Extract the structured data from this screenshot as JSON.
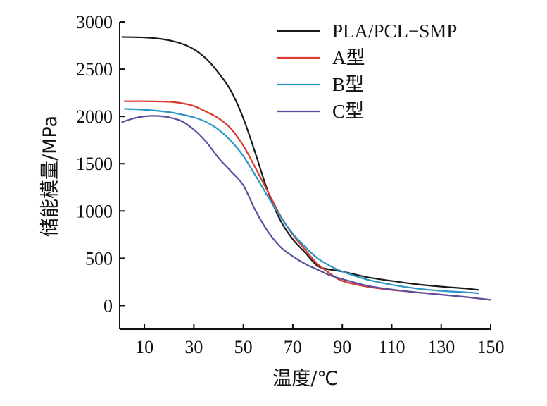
{
  "chart_data": {
    "type": "line",
    "xlabel": "温度/℃",
    "ylabel": "储能模量/MPa",
    "xlim": [
      0,
      150
    ],
    "ylim": [
      -250,
      3000
    ],
    "xticks": [
      10,
      30,
      50,
      70,
      90,
      110,
      130,
      150
    ],
    "yticks": [
      0,
      500,
      1000,
      1500,
      2000,
      2500,
      3000
    ],
    "grid": false,
    "legend": "top-right",
    "series": [
      {
        "name": "PLA/PCL−SMP",
        "color": "#1a1a1a",
        "x": [
          1,
          10,
          15,
          20,
          25,
          30,
          35,
          40,
          45,
          50,
          55,
          60,
          65,
          70,
          75,
          80,
          85,
          90,
          100,
          110,
          120,
          130,
          140,
          145
        ],
        "y": [
          2840,
          2835,
          2825,
          2805,
          2770,
          2710,
          2610,
          2460,
          2270,
          1980,
          1600,
          1200,
          900,
          700,
          560,
          420,
          380,
          360,
          300,
          260,
          225,
          200,
          180,
          165
        ]
      },
      {
        "name": "A型",
        "color": "#d93a2b",
        "x": [
          2,
          10,
          20,
          25,
          30,
          35,
          40,
          45,
          50,
          55,
          60,
          65,
          70,
          75,
          80,
          85,
          90,
          100,
          110,
          120,
          130,
          140,
          150
        ],
        "y": [
          2160,
          2160,
          2155,
          2140,
          2110,
          2050,
          1980,
          1870,
          1690,
          1450,
          1200,
          950,
          750,
          590,
          440,
          340,
          260,
          200,
          165,
          140,
          115,
          90,
          60
        ]
      },
      {
        "name": "B型",
        "color": "#2a95c8",
        "x": [
          2,
          10,
          20,
          25,
          30,
          35,
          40,
          45,
          50,
          55,
          60,
          65,
          70,
          75,
          80,
          85,
          90,
          100,
          110,
          120,
          130,
          140,
          145
        ],
        "y": [
          2080,
          2070,
          2045,
          2020,
          1990,
          1940,
          1860,
          1740,
          1580,
          1370,
          1150,
          940,
          760,
          620,
          500,
          420,
          360,
          275,
          220,
          180,
          155,
          140,
          130
        ]
      },
      {
        "name": "C型",
        "color": "#5b4f9e",
        "x": [
          1,
          5,
          10,
          15,
          20,
          25,
          30,
          35,
          40,
          45,
          50,
          55,
          60,
          65,
          70,
          75,
          80,
          85,
          90,
          100,
          110,
          120,
          130,
          140,
          150
        ],
        "y": [
          1940,
          1975,
          2000,
          2005,
          1990,
          1950,
          1860,
          1730,
          1560,
          1420,
          1270,
          1000,
          780,
          620,
          520,
          440,
          380,
          320,
          280,
          210,
          170,
          140,
          115,
          90,
          60
        ]
      }
    ]
  }
}
